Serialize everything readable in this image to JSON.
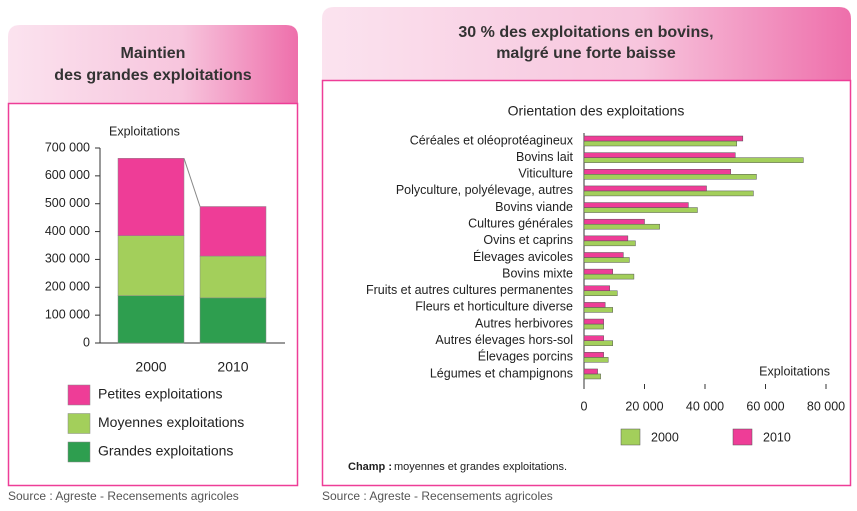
{
  "chart_data": [
    {
      "type": "stacked-bar",
      "title": [
        "Maintien",
        "des grandes exploitations"
      ],
      "y_label": "Exploitations",
      "categories": [
        "2000",
        "2010"
      ],
      "series": [
        {
          "name": "Grandes exploitations",
          "color": "#2e9e4f",
          "values": [
            170000,
            162000
          ]
        },
        {
          "name": "Moyennes exploitations",
          "color": "#a3cf5b",
          "values": [
            215000,
            150000
          ]
        },
        {
          "name": "Petites exploitations",
          "color": "#ee3d97",
          "values": [
            278000,
            178000
          ]
        }
      ],
      "ylim": [
        0,
        700000
      ],
      "yticks": [
        0,
        {
          "value": 100000,
          "label": "100 000"
        },
        {
          "value": 200000,
          "label": "200 000"
        },
        {
          "value": 300000,
          "label": "300 000"
        },
        {
          "value": 400000,
          "label": "400 000"
        },
        {
          "value": 500000,
          "label": "500 000"
        },
        {
          "value": 600000,
          "label": "600 000"
        },
        {
          "value": 700000,
          "label": "700 000"
        }
      ],
      "source": "Source : Agreste - Recensements agricoles"
    },
    {
      "type": "grouped-hbar",
      "title": [
        "30 % des exploitations en bovins,",
        "malgré une forte baisse"
      ],
      "subtitle": "Orientation des exploitations",
      "x_label": "Exploitations",
      "categories": [
        "Céréales et oléoprotéagineux",
        "Bovins lait",
        "Viticulture",
        "Polyculture, polyélevage, autres",
        "Bovins viande",
        "Cultures générales",
        "Ovins et caprins",
        "Élevages avicoles",
        "Bovins mixte",
        "Fruits et autres cultures permanentes",
        "Fleurs et horticulture diverse",
        "Autres herbivores",
        "Autres élevages hors-sol",
        "Élevages porcins",
        "Légumes et champignons"
      ],
      "series": [
        {
          "name": "2000",
          "color": "#a3cf5b",
          "values": [
            50500,
            72500,
            57000,
            56000,
            37500,
            25000,
            17000,
            15000,
            16500,
            11000,
            9500,
            6500,
            9500,
            8000,
            5500
          ]
        },
        {
          "name": "2010",
          "color": "#ee3d97",
          "values": [
            52500,
            50000,
            48500,
            40500,
            34500,
            20000,
            14500,
            13000,
            9500,
            8500,
            7000,
            6500,
            6500,
            6500,
            4500
          ]
        }
      ],
      "xlim": [
        0,
        80000
      ],
      "xticks": [
        0,
        {
          "value": 20000,
          "label": "20 000"
        },
        {
          "value": 40000,
          "label": "40 000"
        },
        {
          "value": 60000,
          "label": "60 000"
        },
        {
          "value": 80000,
          "label": "80 000"
        }
      ],
      "note_label": "Champ :",
      "note": "moyennes et grandes exploitations.",
      "source": "Source : Agreste - Recensements agricoles"
    }
  ]
}
